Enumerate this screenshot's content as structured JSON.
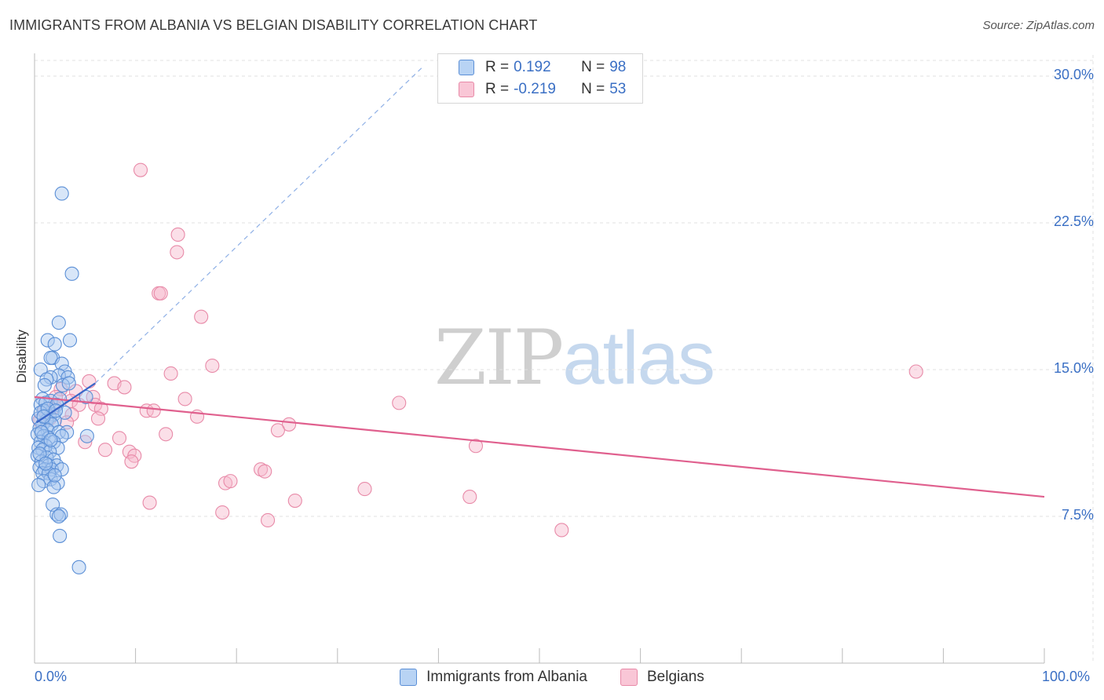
{
  "title": "IMMIGRANTS FROM ALBANIA VS BELGIAN DISABILITY CORRELATION CHART",
  "source": "Source: ZipAtlas.com",
  "watermark": {
    "part1": "ZIP",
    "part2": "atlas"
  },
  "legend": {
    "rows": [
      {
        "r_label": "R =",
        "r_value": "0.192",
        "n_label": "N =",
        "n_value": "98"
      },
      {
        "r_label": "R =",
        "r_value": "-0.219",
        "n_label": "N =",
        "n_value": "53"
      }
    ]
  },
  "bottom_legend": [
    "Immigrants from Albania",
    "Belgians"
  ],
  "colors": {
    "albania_fill": "#a9c8f0",
    "albania_stroke": "#5b8fd6",
    "albania_line": "#3a66c8",
    "belgian_fill": "#f6b9cc",
    "belgian_stroke": "#e88aa8",
    "belgian_line": "#e0608e",
    "grid": "#e2e2e2",
    "axis_label": "#3a6fc4"
  },
  "chart_data": {
    "type": "scatter",
    "title": "IMMIGRANTS FROM ALBANIA VS BELGIAN DISABILITY CORRELATION CHART",
    "xlabel": "",
    "ylabel": "Disability",
    "xlim": [
      0,
      100
    ],
    "ylim": [
      0,
      30.5
    ],
    "x_tick_labels": [
      "0.0%",
      "100.0%"
    ],
    "y_ticks": [
      7.5,
      15.0,
      22.5,
      30.0
    ],
    "y_tick_labels": [
      "7.5%",
      "15.0%",
      "22.5%",
      "30.0%"
    ],
    "legend_position": "top-center",
    "series": [
      {
        "name": "Immigrants from Albania",
        "r": 0.192,
        "n": 98,
        "trend_solid": [
          [
            0.2,
            12.3
          ],
          [
            6.0,
            14.3
          ]
        ],
        "trend_dashed": [
          [
            6.0,
            14.3
          ],
          [
            38.5,
            30.5
          ]
        ],
        "points": [
          [
            2.7,
            24.0
          ],
          [
            3.7,
            19.9
          ],
          [
            2.4,
            17.4
          ],
          [
            1.3,
            16.5
          ],
          [
            3.5,
            16.5
          ],
          [
            2.0,
            16.3
          ],
          [
            1.8,
            15.6
          ],
          [
            1.6,
            15.6
          ],
          [
            2.7,
            15.3
          ],
          [
            0.6,
            15.0
          ],
          [
            3.0,
            14.9
          ],
          [
            2.4,
            14.7
          ],
          [
            1.6,
            14.6
          ],
          [
            1.2,
            14.5
          ],
          [
            3.3,
            14.6
          ],
          [
            1.0,
            14.2
          ],
          [
            2.8,
            14.2
          ],
          [
            3.4,
            14.3
          ],
          [
            0.8,
            13.5
          ],
          [
            1.6,
            13.4
          ],
          [
            2.5,
            13.5
          ],
          [
            5.1,
            13.6
          ],
          [
            0.6,
            13.2
          ],
          [
            1.1,
            13.3
          ],
          [
            2.2,
            13.2
          ],
          [
            0.9,
            12.9
          ],
          [
            1.9,
            12.7
          ],
          [
            1.5,
            12.6
          ],
          [
            3.0,
            12.8
          ],
          [
            0.4,
            12.5
          ],
          [
            1.2,
            12.4
          ],
          [
            2.0,
            12.4
          ],
          [
            0.8,
            12.2
          ],
          [
            1.7,
            12.2
          ],
          [
            0.5,
            12.0
          ],
          [
            1.3,
            11.9
          ],
          [
            2.4,
            11.8
          ],
          [
            3.2,
            11.8
          ],
          [
            0.3,
            11.7
          ],
          [
            0.9,
            11.6
          ],
          [
            1.4,
            11.5
          ],
          [
            2.7,
            11.6
          ],
          [
            5.2,
            11.6
          ],
          [
            0.6,
            11.3
          ],
          [
            1.9,
            11.3
          ],
          [
            1.1,
            11.1
          ],
          [
            0.4,
            11.0
          ],
          [
            2.3,
            11.0
          ],
          [
            0.8,
            10.9
          ],
          [
            1.5,
            10.8
          ],
          [
            0.3,
            10.6
          ],
          [
            1.2,
            10.5
          ],
          [
            1.9,
            10.4
          ],
          [
            0.7,
            10.3
          ],
          [
            1.4,
            10.1
          ],
          [
            2.2,
            10.1
          ],
          [
            0.5,
            10.0
          ],
          [
            1.0,
            9.9
          ],
          [
            1.7,
            9.9
          ],
          [
            2.7,
            9.9
          ],
          [
            0.8,
            9.7
          ],
          [
            1.4,
            9.7
          ],
          [
            1.6,
            9.4
          ],
          [
            0.9,
            9.3
          ],
          [
            2.3,
            9.2
          ],
          [
            1.9,
            9.0
          ],
          [
            0.4,
            9.1
          ],
          [
            1.8,
            8.1
          ],
          [
            2.2,
            7.6
          ],
          [
            2.6,
            7.6
          ],
          [
            2.4,
            7.5
          ],
          [
            2.5,
            6.5
          ],
          [
            4.4,
            4.9
          ],
          [
            0.6,
            12.8
          ],
          [
            1.3,
            13.0
          ],
          [
            2.1,
            12.9
          ],
          [
            0.7,
            11.8
          ],
          [
            1.6,
            11.4
          ],
          [
            0.5,
            10.7
          ],
          [
            1.1,
            10.2
          ],
          [
            2.0,
            9.6
          ],
          [
            0.9,
            12.6
          ]
        ]
      },
      {
        "name": "Belgians",
        "r": -0.219,
        "n": 53,
        "trend": [
          [
            0.0,
            13.6
          ],
          [
            100.0,
            8.5
          ]
        ],
        "points": [
          [
            10.5,
            25.2
          ],
          [
            14.2,
            21.9
          ],
          [
            14.1,
            21.0
          ],
          [
            12.3,
            18.9
          ],
          [
            12.5,
            18.9
          ],
          [
            16.5,
            17.7
          ],
          [
            87.3,
            14.9
          ],
          [
            17.6,
            15.2
          ],
          [
            13.5,
            14.8
          ],
          [
            5.4,
            14.4
          ],
          [
            7.9,
            14.3
          ],
          [
            8.9,
            14.1
          ],
          [
            2.6,
            14.0
          ],
          [
            4.1,
            13.9
          ],
          [
            5.8,
            13.6
          ],
          [
            2.1,
            13.6
          ],
          [
            3.6,
            13.4
          ],
          [
            14.9,
            13.5
          ],
          [
            6.0,
            13.2
          ],
          [
            2.0,
            13.1
          ],
          [
            4.4,
            13.2
          ],
          [
            36.1,
            13.3
          ],
          [
            6.6,
            13.0
          ],
          [
            11.1,
            12.9
          ],
          [
            11.8,
            12.9
          ],
          [
            3.7,
            12.7
          ],
          [
            16.1,
            12.6
          ],
          [
            1.5,
            12.5
          ],
          [
            6.3,
            12.5
          ],
          [
            25.2,
            12.2
          ],
          [
            0.5,
            12.4
          ],
          [
            24.1,
            11.9
          ],
          [
            13.0,
            11.7
          ],
          [
            8.4,
            11.5
          ],
          [
            5.0,
            11.3
          ],
          [
            43.7,
            11.1
          ],
          [
            7.0,
            10.9
          ],
          [
            9.4,
            10.8
          ],
          [
            9.9,
            10.6
          ],
          [
            9.6,
            10.3
          ],
          [
            22.4,
            9.9
          ],
          [
            22.8,
            9.8
          ],
          [
            18.9,
            9.2
          ],
          [
            19.4,
            9.3
          ],
          [
            32.7,
            8.9
          ],
          [
            43.1,
            8.5
          ],
          [
            25.8,
            8.3
          ],
          [
            11.4,
            8.2
          ],
          [
            18.6,
            7.7
          ],
          [
            23.1,
            7.3
          ],
          [
            52.2,
            6.8
          ],
          [
            3.2,
            12.3
          ],
          [
            1.0,
            12.9
          ]
        ]
      }
    ]
  }
}
